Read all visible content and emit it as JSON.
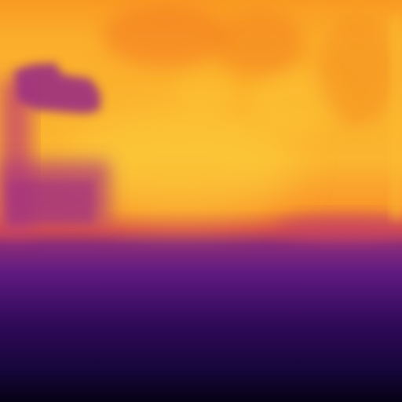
{
  "image": {
    "kind": "depth-map",
    "colormap": "inferno",
    "palette": {
      "far_bright": "#fcd03c",
      "bright": "#fbb32f",
      "mid_orange": "#f98c1a",
      "orange_dark": "#e8751a",
      "magenta": "#b5367a",
      "purple": "#6a1a8a",
      "deep_purple": "#3a0b5e",
      "near_black": "#0d0421"
    }
  }
}
